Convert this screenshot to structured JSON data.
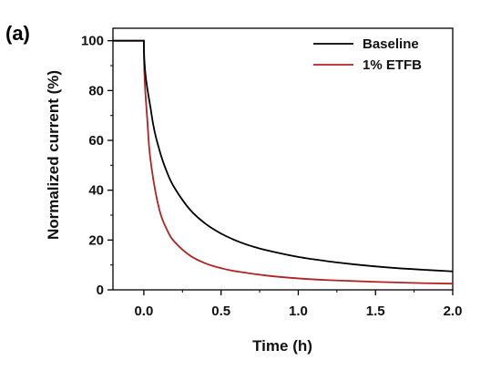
{
  "panel_label": "(a)",
  "chart_data": {
    "type": "line",
    "xlabel": "Time (h)",
    "ylabel": "Normalized current (%)",
    "xlim": [
      -0.2,
      2.0
    ],
    "ylim": [
      0,
      105
    ],
    "xticks": [
      "0.0",
      "0.5",
      "1.0",
      "1.5",
      "2.0"
    ],
    "yticks": [
      "0",
      "20",
      "40",
      "60",
      "80",
      "100"
    ],
    "grid": false,
    "legend_position": "top-right",
    "series": [
      {
        "name": "Baseline",
        "color": "#000000",
        "x": [
          -0.2,
          0.0,
          0.05,
          0.1,
          0.15,
          0.2,
          0.3,
          0.4,
          0.5,
          0.6,
          0.7,
          0.8,
          1.0,
          1.2,
          1.4,
          1.6,
          1.8,
          2.0
        ],
        "y": [
          100,
          100,
          70.4,
          56.3,
          47.2,
          40.8,
          32.1,
          26.5,
          22.6,
          19.7,
          17.5,
          15.8,
          13.2,
          11.4,
          10.0,
          8.9,
          8.1,
          7.4
        ]
      },
      {
        "name": "1% ETFB",
        "color": "#b22222",
        "x": [
          -0.2,
          0.0,
          0.025,
          0.05,
          0.1,
          0.15,
          0.2,
          0.3,
          0.4,
          0.5,
          0.6,
          0.8,
          1.0,
          1.2,
          1.5,
          1.8,
          2.0
        ],
        "y": [
          100,
          100,
          65.8,
          49.0,
          32.3,
          24.1,
          19.2,
          13.7,
          10.6,
          8.7,
          7.4,
          5.7,
          4.6,
          3.9,
          3.2,
          2.7,
          2.5
        ]
      }
    ]
  }
}
